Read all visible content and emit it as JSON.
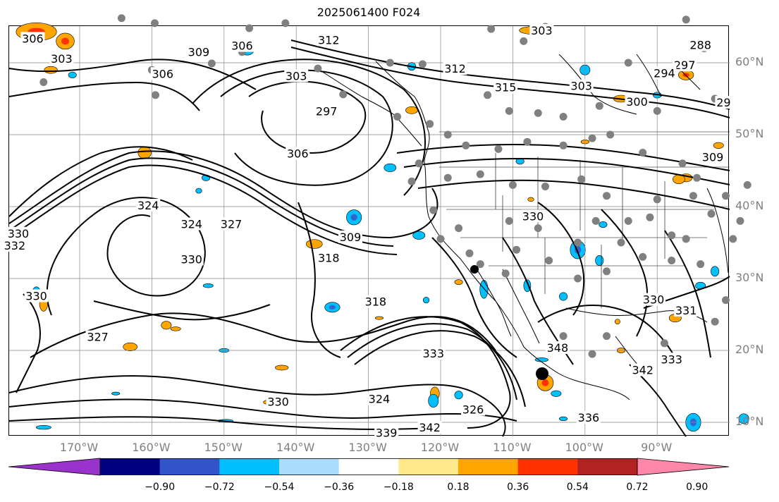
{
  "title": "2025061400 F024",
  "latitude_labels": [
    "60°N",
    "50°N",
    "40°N",
    "30°N",
    "20°N",
    "10°N"
  ],
  "longitude_labels": [
    "170°W",
    "160°W",
    "150°W",
    "140°W",
    "130°W",
    "120°W",
    "110°W",
    "100°W",
    "90°W"
  ],
  "contour_labels": [
    {
      "text": "306",
      "lon": -176.5,
      "lat": 63.3
    },
    {
      "text": "303",
      "lon": -172.5,
      "lat": 60.5
    },
    {
      "text": "309",
      "lon": -153.5,
      "lat": 61.4
    },
    {
      "text": "306",
      "lon": -158.5,
      "lat": 58.4
    },
    {
      "text": "306",
      "lon": -147.5,
      "lat": 62.3
    },
    {
      "text": "312",
      "lon": -135.5,
      "lat": 63.1
    },
    {
      "text": "303",
      "lon": -140,
      "lat": 58.1
    },
    {
      "text": "297",
      "lon": -135.8,
      "lat": 53.2
    },
    {
      "text": "306",
      "lon": -139.8,
      "lat": 47.3
    },
    {
      "text": "303",
      "lon": -106,
      "lat": 64.4
    },
    {
      "text": "312",
      "lon": -118,
      "lat": 59.1
    },
    {
      "text": "315",
      "lon": -111,
      "lat": 56.5
    },
    {
      "text": "303",
      "lon": -100.5,
      "lat": 56.7
    },
    {
      "text": "300",
      "lon": -92.8,
      "lat": 54.5
    },
    {
      "text": "297",
      "lon": -86.2,
      "lat": 59.6
    },
    {
      "text": "294",
      "lon": -89,
      "lat": 58.5
    },
    {
      "text": "288",
      "lon": -84,
      "lat": 62.4
    },
    {
      "text": "29",
      "lon": -80.8,
      "lat": 54.4
    },
    {
      "text": "309",
      "lon": -82.3,
      "lat": 46.8
    },
    {
      "text": "324",
      "lon": -160.5,
      "lat": 40.1
    },
    {
      "text": "324",
      "lon": -154.5,
      "lat": 37.5
    },
    {
      "text": "327",
      "lon": -149,
      "lat": 37.5
    },
    {
      "text": "330",
      "lon": -154.5,
      "lat": 32.6
    },
    {
      "text": "309",
      "lon": -132.5,
      "lat": 35.7
    },
    {
      "text": "318",
      "lon": -135.5,
      "lat": 32.8
    },
    {
      "text": "318",
      "lon": -129,
      "lat": 26.7
    },
    {
      "text": "330",
      "lon": -178.5,
      "lat": 36.2
    },
    {
      "text": "330",
      "lon": -176,
      "lat": 27.5
    },
    {
      "text": "327",
      "lon": -167.5,
      "lat": 21.8
    },
    {
      "text": "330",
      "lon": -107.2,
      "lat": 38.6
    },
    {
      "text": "330",
      "lon": -90.5,
      "lat": 27
    },
    {
      "text": "348",
      "lon": -103.8,
      "lat": 20.3
    },
    {
      "text": "333",
      "lon": -121,
      "lat": 19.5
    },
    {
      "text": "324",
      "lon": -128.5,
      "lat": 13.2
    },
    {
      "text": "330",
      "lon": -142.5,
      "lat": 12.8
    },
    {
      "text": "336",
      "lon": -99.5,
      "lat": 10.6
    },
    {
      "text": "342",
      "lon": -121.5,
      "lat": 9.2
    },
    {
      "text": "339",
      "lon": -127.5,
      "lat": 8.5
    },
    {
      "text": "326",
      "lon": -115.5,
      "lat": 11.7
    },
    {
      "text": "342",
      "lon": -92,
      "lat": 17.2
    },
    {
      "text": "333",
      "lon": -88,
      "lat": 18.7
    },
    {
      "text": "332",
      "lon": -179,
      "lat": 34.5
    },
    {
      "text": "331",
      "lon": -86,
      "lat": 25.5
    }
  ],
  "station_markers": [
    [
      -164.2,
      66.2
    ],
    [
      -159.6,
      65.5
    ],
    [
      -160,
      59
    ],
    [
      -175,
      57.3
    ],
    [
      -151.7,
      59.9
    ],
    [
      -146.5,
      64.8
    ],
    [
      -141.5,
      65.5
    ],
    [
      -147.5,
      61.5
    ],
    [
      -159.5,
      55.5
    ],
    [
      -137,
      59.2
    ],
    [
      -133.5,
      55.6
    ],
    [
      -127,
      60
    ],
    [
      -122.5,
      59.8
    ],
    [
      -113,
      64.7
    ],
    [
      -108.5,
      63
    ],
    [
      -105.5,
      65
    ],
    [
      -113.5,
      55.5
    ],
    [
      -110.5,
      53.3
    ],
    [
      -106.5,
      53
    ],
    [
      -103,
      52.5
    ],
    [
      -98,
      54
    ],
    [
      -94,
      60
    ],
    [
      -90,
      53.3
    ],
    [
      -86,
      66
    ],
    [
      -82,
      55
    ],
    [
      -83.5,
      62
    ],
    [
      -121.5,
      51.5
    ],
    [
      -126,
      52.5
    ],
    [
      -119,
      50
    ],
    [
      -116.5,
      48.5
    ],
    [
      -112,
      48
    ],
    [
      -108,
      49
    ],
    [
      -103,
      48.5
    ],
    [
      -99,
      49.5
    ],
    [
      -96.5,
      50
    ],
    [
      -92,
      47.5
    ],
    [
      -86.5,
      46
    ],
    [
      -123,
      46
    ],
    [
      -119,
      44
    ],
    [
      -114.5,
      44.5
    ],
    [
      -110,
      43
    ],
    [
      -105.5,
      42.8
    ],
    [
      -100.5,
      43.8
    ],
    [
      -97,
      41.5
    ],
    [
      -94,
      38
    ],
    [
      -90,
      41
    ],
    [
      -84.5,
      44
    ],
    [
      -80.5,
      41.5
    ],
    [
      -82.5,
      39
    ],
    [
      -86,
      35.5
    ],
    [
      -84,
      32
    ],
    [
      -88,
      32.5
    ],
    [
      -92,
      33
    ],
    [
      -97,
      31
    ],
    [
      -101,
      30
    ],
    [
      -105,
      32.5
    ],
    [
      -109.5,
      34
    ],
    [
      -111,
      30.7
    ],
    [
      -114.5,
      32
    ],
    [
      -117.5,
      37
    ],
    [
      -121,
      39.5
    ],
    [
      -124,
      43.5
    ],
    [
      -120,
      35.5
    ],
    [
      -116,
      33.5
    ],
    [
      -106.5,
      37
    ],
    [
      -110.5,
      38
    ],
    [
      -101,
      35
    ],
    [
      -95,
      35
    ],
    [
      -98.5,
      38
    ],
    [
      -91,
      38.5
    ],
    [
      -88,
      36
    ],
    [
      -85,
      41.5
    ],
    [
      -79.5,
      35.5
    ],
    [
      -78.5,
      38
    ],
    [
      -77.5,
      43
    ],
    [
      -80.5,
      27
    ],
    [
      -82,
      24
    ],
    [
      -97,
      22
    ],
    [
      -99,
      19.5
    ],
    [
      -103,
      22
    ],
    [
      -89,
      21
    ]
  ],
  "shading": {
    "warm_patches": [
      [
        -176,
        64.3,
        4,
        1.8
      ],
      [
        -172,
        63,
        1.8,
        1.6
      ],
      [
        -174,
        59,
        1.3,
        0.7
      ],
      [
        -107,
        64.5,
        3,
        0.8
      ],
      [
        -95,
        55,
        1.5,
        0.7
      ],
      [
        -86,
        58.3,
        1.5,
        1
      ],
      [
        -86,
        44,
        1.2,
        0.8
      ],
      [
        -161,
        47.5,
        1.3,
        1.2
      ],
      [
        -124,
        53.4,
        1.2,
        0.7
      ],
      [
        -137.5,
        34.8,
        1.6,
        0.9
      ],
      [
        -158,
        23.5,
        1,
        0.8
      ],
      [
        -142,
        17.6,
        1.3,
        0.5
      ],
      [
        -156.7,
        23,
        1,
        0.4
      ],
      [
        -163,
        20.5,
        1.4,
        0.8
      ],
      [
        -128.5,
        24.5,
        0.8,
        0.3
      ],
      [
        -120.8,
        14,
        0.9,
        1.3
      ],
      [
        -143.5,
        12.8,
        1.5,
        0.5
      ],
      [
        -105.5,
        15.5,
        1.6,
        1.6
      ],
      [
        -87.5,
        24.5,
        1.2,
        0.8
      ],
      [
        -175,
        26.5,
        0.8,
        1.5
      ],
      [
        -87,
        43.8,
        1.2,
        0.9
      ],
      [
        -95.5,
        24,
        0.5,
        0.5
      ],
      [
        -117.5,
        29.5,
        0.8,
        0.5
      ],
      [
        -95,
        20,
        0.8,
        0.5
      ],
      [
        -81.5,
        48.5,
        1,
        0.6
      ],
      [
        -100,
        49,
        0.8,
        0.4
      ],
      [
        -107.5,
        41,
        0.6,
        0.4
      ]
    ],
    "cool_patches": [
      [
        -146.8,
        61.7,
        1.3,
        0.9
      ],
      [
        -124,
        59.5,
        0.8,
        0.8
      ],
      [
        -100,
        59,
        1,
        1
      ],
      [
        -90,
        55.5,
        0.8,
        0.6
      ],
      [
        -109,
        46.3,
        0.8,
        0.6
      ],
      [
        -127,
        45.4,
        1.2,
        0.8
      ],
      [
        -132,
        38.5,
        1.5,
        1.5
      ],
      [
        -123,
        36,
        1.2,
        0.8
      ],
      [
        -152.5,
        44,
        0.8,
        0.6
      ],
      [
        -153.5,
        42.2,
        0.6,
        0.5
      ],
      [
        -114,
        28.5,
        0.8,
        1.8
      ],
      [
        -108,
        29,
        0.7,
        1.2
      ],
      [
        -103,
        27.5,
        0.8,
        0.8
      ],
      [
        -101,
        34,
        1.5,
        1.8
      ],
      [
        -98,
        32.5,
        0.8,
        1
      ],
      [
        -84,
        29,
        1,
        0.7
      ],
      [
        -82,
        31,
        0.8,
        1
      ],
      [
        -135,
        26,
        1.5,
        1
      ],
      [
        -122,
        27,
        0.6,
        0.6
      ],
      [
        -106,
        18.7,
        1.3,
        0.4
      ],
      [
        -121,
        13,
        1,
        1.3
      ],
      [
        -117.5,
        13.8,
        0.8,
        0.8
      ],
      [
        -104,
        14,
        1,
        0.6
      ],
      [
        -103,
        10.5,
        0.8,
        0.4
      ],
      [
        -85,
        10,
        1.5,
        1.8
      ],
      [
        -78,
        10.5,
        1,
        1
      ],
      [
        -97.5,
        37.5,
        0.8,
        0.6
      ],
      [
        -152.2,
        29,
        1,
        0.4
      ],
      [
        -150,
        20,
        1,
        0.4
      ],
      [
        -149.8,
        10.2,
        1.5,
        0.3
      ],
      [
        -165,
        14,
        0.8,
        0.3
      ],
      [
        -175,
        9.3,
        1.5,
        0.4
      ],
      [
        -176,
        28,
        0.8,
        1.2
      ],
      [
        -171,
        58.3,
        0.8,
        0.6
      ]
    ],
    "warm_color": "#FFA500",
    "warm_inner_color": "#FF3300",
    "cool_color": "#00BFFF",
    "cool_inner_color": "#3366CC"
  },
  "colorbar": {
    "colors": [
      "#9933CC",
      "#000080",
      "#3355CC",
      "#00BFFF",
      "#AADDFF",
      "#FFFFFF",
      "#FFE88A",
      "#FFA500",
      "#FF3300",
      "#B22222",
      "#FF88AA"
    ],
    "tick_labels": [
      "−0.90",
      "−0.72",
      "−0.54",
      "−0.36",
      "−0.18",
      "0.18",
      "0.36",
      "0.54",
      "0.72",
      "0.90"
    ]
  },
  "colors": {
    "contour": "#000000",
    "grid": "#888888",
    "coast": "#000000",
    "label": "#808080"
  }
}
